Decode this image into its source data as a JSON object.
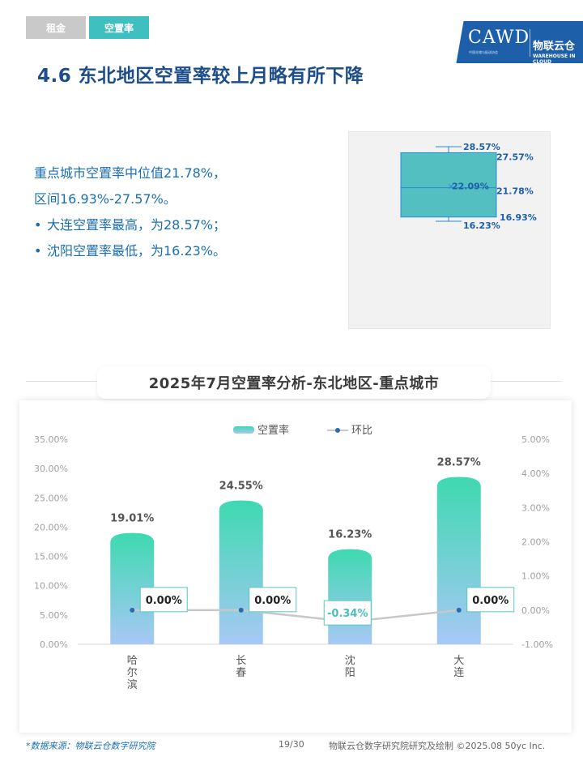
{
  "tabs": [
    {
      "label": "租金",
      "active": false
    },
    {
      "label": "空置率",
      "active": true
    }
  ],
  "logo": {
    "brand": "CAWD",
    "subtitle": "中国仓储与配送协会",
    "cn_name": "物联云仓",
    "en_name": "WAREHOUSE IN CLOUD"
  },
  "page_title": "4.6 东北地区空置率较上月略有所下降",
  "summary": {
    "line1": "重点城市空置率中位值21.78%，",
    "line2": "区间16.93%-27.57%。",
    "bullet1": "大连空置率最高，为28.57%；",
    "bullet2": "沈阳空置率最低，为16.23%。",
    "bullet_mark": "•"
  },
  "colors": {
    "accent": "#3fbfbf",
    "title": "#1d4d8a",
    "text_blue": "#1a6fb3",
    "bar_top": "#3ed9b0",
    "bar_bottom": "#a7c8f5",
    "line": "#c8c8c8",
    "dot": "#2b6cb0"
  },
  "boxplot_data": {
    "type": "box",
    "max": 28.57,
    "q3": 27.57,
    "mean": 22.09,
    "median": 21.78,
    "q1": 16.93,
    "min": 16.23,
    "labels": {
      "max": "28.57%",
      "q3": "27.57%",
      "mean": "22.09%",
      "median": "21.78%",
      "q1": "16.93%",
      "min": "16.23%"
    }
  },
  "chart_data": {
    "type": "bar",
    "title": "2025年7月空置率分析-东北地区-重点城市",
    "categories": [
      "哈尔滨",
      "长春",
      "沈阳",
      "大连"
    ],
    "series": [
      {
        "name": "空置率",
        "type": "bar",
        "values": [
          19.01,
          24.55,
          16.23,
          28.57
        ],
        "labels": [
          "19.01%",
          "24.55%",
          "16.23%",
          "28.57%"
        ]
      },
      {
        "name": "环比",
        "type": "line",
        "values": [
          0.0,
          0.0,
          -0.34,
          0.0
        ],
        "labels": [
          "0.00%",
          "0.00%",
          "-0.34%",
          "0.00%"
        ]
      }
    ],
    "y_left": {
      "min": 0,
      "max": 35,
      "step": 5,
      "ticks": [
        "0.00%",
        "5.00%",
        "10.00%",
        "15.00%",
        "20.00%",
        "25.00%",
        "30.00%",
        "35.00%"
      ]
    },
    "y_right": {
      "min": -1,
      "max": 5,
      "step": 1,
      "ticks": [
        "-1.00%",
        "0.00%",
        "1.00%",
        "2.00%",
        "3.00%",
        "4.00%",
        "5.00%"
      ]
    },
    "legend": "top-center",
    "grid": false
  },
  "footer": {
    "source": "*数据来源：物联云仓数字研究院",
    "page": "19/30",
    "credit": "物联云仓数字研究院研究及绘制  ©2025.08 50yc Inc."
  }
}
